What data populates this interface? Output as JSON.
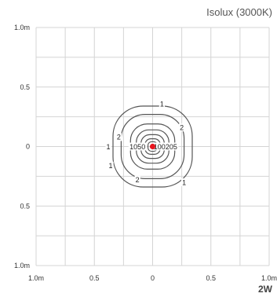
{
  "header": {
    "title": "Isolux (3000K)"
  },
  "footer": {
    "power_label": "2W"
  },
  "chart_data": {
    "type": "contour",
    "title": "Isolux (3000K)",
    "xlim": [
      -1.0,
      1.0
    ],
    "ylim": [
      -1.0,
      1.0
    ],
    "grid": true,
    "x_ticks": [
      {
        "value": -1.0,
        "label": "1.0m"
      },
      {
        "value": -0.5,
        "label": "0.5"
      },
      {
        "value": 0.0,
        "label": "0"
      },
      {
        "value": 0.5,
        "label": "0.5"
      },
      {
        "value": 1.0,
        "label": "1.0m"
      }
    ],
    "y_ticks": [
      {
        "value": 1.0,
        "label": "1.0m"
      },
      {
        "value": 0.5,
        "label": "0.5"
      },
      {
        "value": 0.0,
        "label": "0"
      },
      {
        "value": -0.5,
        "label": "0.5"
      },
      {
        "value": -1.0,
        "label": "1.0m"
      }
    ],
    "contours": [
      {
        "level": 1,
        "half_width": 0.34
      },
      {
        "level": 2,
        "half_width": 0.27
      },
      {
        "level": 5,
        "half_width": 0.19
      },
      {
        "level": 10,
        "half_width": 0.14
      },
      {
        "level": 20,
        "half_width": 0.1
      },
      {
        "level": 50,
        "half_width": 0.065
      },
      {
        "level": 100,
        "half_width": 0.04
      }
    ],
    "contour_labels": [
      {
        "text": "1",
        "x": 0.08,
        "y": 0.36
      },
      {
        "text": "2",
        "x": 0.25,
        "y": 0.16
      },
      {
        "text": "2",
        "x": -0.29,
        "y": 0.08
      },
      {
        "text": "1",
        "x": -0.38,
        "y": 0.0
      },
      {
        "text": "1050",
        "x": -0.13,
        "y": 0.0
      },
      {
        "text": "100205",
        "x": 0.11,
        "y": 0.0
      },
      {
        "text": "1",
        "x": -0.36,
        "y": -0.16
      },
      {
        "text": "2",
        "x": -0.13,
        "y": -0.28
      },
      {
        "text": "1",
        "x": 0.27,
        "y": -0.3
      }
    ],
    "center_point": {
      "x": 0.0,
      "y": 0.0,
      "color": "#e8161f"
    },
    "line_color": "#555555",
    "grid_color": "#d4d4d4"
  }
}
